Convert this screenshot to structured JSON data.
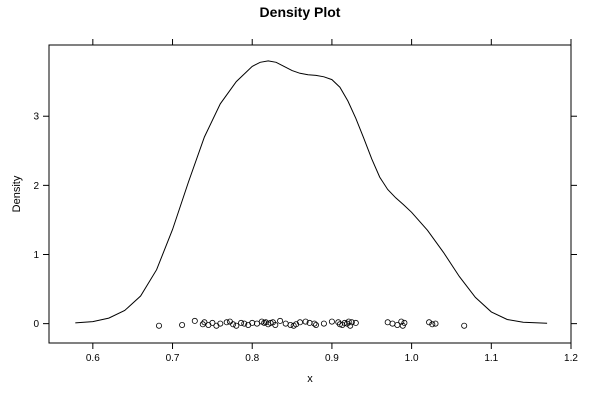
{
  "chart_data": {
    "type": "line",
    "title": "Density Plot",
    "xlabel": "x",
    "ylabel": "Density",
    "xlim": [
      0.545,
      1.2
    ],
    "ylim": [
      -0.28,
      4.03
    ],
    "x_ticks": [
      0.6,
      0.7,
      0.8,
      0.9,
      1.0,
      1.1,
      1.2
    ],
    "x_tick_labels": [
      "0.6",
      "0.7",
      "0.8",
      "0.9",
      "1.0",
      "1.1",
      "1.2"
    ],
    "y_ticks": [
      0,
      1,
      2,
      3
    ],
    "y_tick_labels": [
      "0",
      "1",
      "2",
      "3"
    ],
    "grid": false,
    "series": [
      {
        "type": "line",
        "x": [
          0.578,
          0.6,
          0.62,
          0.64,
          0.66,
          0.68,
          0.7,
          0.72,
          0.74,
          0.76,
          0.78,
          0.8,
          0.81,
          0.82,
          0.83,
          0.84,
          0.85,
          0.86,
          0.87,
          0.88,
          0.89,
          0.9,
          0.91,
          0.92,
          0.93,
          0.94,
          0.95,
          0.96,
          0.97,
          0.98,
          0.99,
          1.0,
          1.02,
          1.04,
          1.06,
          1.08,
          1.1,
          1.12,
          1.14,
          1.17
        ],
        "y": [
          0.01,
          0.03,
          0.08,
          0.19,
          0.4,
          0.78,
          1.36,
          2.05,
          2.7,
          3.18,
          3.5,
          3.72,
          3.78,
          3.8,
          3.78,
          3.72,
          3.66,
          3.62,
          3.6,
          3.59,
          3.57,
          3.53,
          3.42,
          3.22,
          2.97,
          2.68,
          2.38,
          2.12,
          1.94,
          1.82,
          1.72,
          1.61,
          1.35,
          1.03,
          0.68,
          0.38,
          0.17,
          0.06,
          0.02,
          0.005
        ]
      },
      {
        "type": "scatter",
        "x": [
          0.683,
          0.712,
          0.728,
          0.738,
          0.74,
          0.745,
          0.75,
          0.755,
          0.76,
          0.768,
          0.772,
          0.776,
          0.78,
          0.786,
          0.79,
          0.795,
          0.8,
          0.806,
          0.812,
          0.815,
          0.817,
          0.82,
          0.823,
          0.826,
          0.829,
          0.835,
          0.842,
          0.848,
          0.852,
          0.855,
          0.86,
          0.867,
          0.872,
          0.878,
          0.88,
          0.89,
          0.9,
          0.908,
          0.91,
          0.913,
          0.916,
          0.919,
          0.921,
          0.923,
          0.925,
          0.93,
          0.97,
          0.976,
          0.982,
          0.987,
          0.989,
          0.991,
          1.022,
          1.026,
          1.03,
          1.066
        ],
        "y": [
          -0.03,
          -0.02,
          0.04,
          -0.01,
          0.02,
          -0.02,
          0.01,
          -0.03,
          0.0,
          0.02,
          0.03,
          -0.01,
          -0.03,
          0.01,
          0.0,
          -0.02,
          0.01,
          0.0,
          0.03,
          0.01,
          0.02,
          -0.01,
          0.01,
          0.02,
          -0.02,
          0.04,
          0.0,
          -0.02,
          -0.03,
          -0.01,
          0.02,
          0.03,
          0.01,
          0.0,
          -0.02,
          0.0,
          0.03,
          0.02,
          -0.01,
          -0.02,
          0.01,
          0.0,
          0.03,
          -0.03,
          0.02,
          0.01,
          0.02,
          0.0,
          -0.02,
          0.03,
          -0.03,
          0.01,
          0.02,
          -0.01,
          0.0,
          -0.03
        ]
      }
    ]
  }
}
